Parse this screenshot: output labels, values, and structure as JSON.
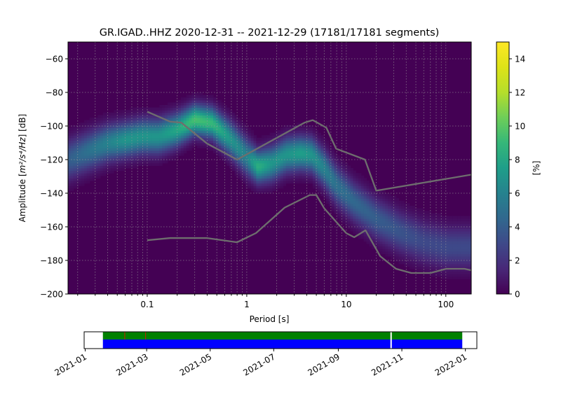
{
  "chart_data": [
    {
      "type": "heatmap",
      "title": "GR.IGAD..HHZ   2020-12-31 -- 2021-12-29  (17181/17181 segments)",
      "xlabel": "Period [s]",
      "ylabel_prefix": "Amplitude [",
      "ylabel_math": "m²/s⁴/Hz",
      "ylabel_suffix": "] [dB]",
      "x_scale": "log",
      "xlim": [
        0.016,
        180
      ],
      "ylim": [
        -200,
        -50
      ],
      "x_ticks": [
        {
          "value": 0.1,
          "label": "0.1"
        },
        {
          "value": 1,
          "label": "1"
        },
        {
          "value": 10,
          "label": "10"
        },
        {
          "value": 100,
          "label": "100"
        }
      ],
      "y_ticks": [
        {
          "value": -60,
          "label": "−60"
        },
        {
          "value": -80,
          "label": "−80"
        },
        {
          "value": -100,
          "label": "−100"
        },
        {
          "value": -120,
          "label": "−120"
        },
        {
          "value": -140,
          "label": "−140"
        },
        {
          "value": -160,
          "label": "−160"
        },
        {
          "value": -180,
          "label": "−180"
        },
        {
          "value": -200,
          "label": "−200"
        }
      ],
      "grid": true,
      "colormap": "viridis",
      "background_color": "#440154",
      "density_band": {
        "period": [
          0.016,
          0.025,
          0.04,
          0.06,
          0.09,
          0.13,
          0.2,
          0.3,
          0.45,
          0.7,
          1.0,
          1.3,
          1.8,
          2.5,
          3.5,
          4.5,
          6,
          8,
          12,
          20,
          35,
          60,
          100,
          180
        ],
        "mode_db": [
          -120,
          -115,
          -110,
          -108,
          -106,
          -106,
          -102,
          -96,
          -98,
          -108,
          -118,
          -124,
          -122,
          -117,
          -116,
          -117,
          -125,
          -135,
          -145,
          -155,
          -163,
          -169,
          -172,
          -172
        ],
        "peak_percent": [
          4,
          5,
          6,
          7,
          7,
          7,
          8,
          9.5,
          9,
          7,
          6,
          8.5,
          7,
          7,
          7.5,
          7,
          6,
          5,
          4.5,
          4,
          3.5,
          3,
          3,
          3
        ]
      },
      "noise_model_upper": {
        "name": "",
        "period": [
          0.1,
          0.17,
          0.22,
          0.4,
          0.8,
          3.8,
          4.6,
          6.3,
          7.9,
          15.4,
          20,
          354.8
        ],
        "db": [
          -91.5,
          -97.4,
          -98,
          -110.5,
          -120,
          -98,
          -96.5,
          -101,
          -113.5,
          -120,
          -138.5,
          -126
        ]
      },
      "noise_model_lower": {
        "name": "",
        "period": [
          0.1,
          0.17,
          0.4,
          0.8,
          1.24,
          2.4,
          4.3,
          5.0,
          6.0,
          10.0,
          12.0,
          15.6,
          21.9,
          31.6,
          45.0,
          70.0,
          101.0,
          154.0,
          180.0
        ],
        "db": [
          -168,
          -166.7,
          -166.7,
          -169.2,
          -163.7,
          -148.6,
          -141.1,
          -141.1,
          -149.0,
          -163.8,
          -166.2,
          -162.1,
          -177.5,
          -185.0,
          -187.5,
          -187.5,
          -185.0,
          -185.0,
          -185.9
        ]
      },
      "colorbar": {
        "label": "[%]",
        "min": 0,
        "max": 15,
        "ticks": [
          {
            "value": 0,
            "label": "0"
          },
          {
            "value": 2,
            "label": "2"
          },
          {
            "value": 4,
            "label": "4"
          },
          {
            "value": 6,
            "label": "6"
          },
          {
            "value": 8,
            "label": "8"
          },
          {
            "value": 10,
            "label": "10"
          },
          {
            "value": 12,
            "label": "12"
          },
          {
            "value": 14,
            "label": "14"
          }
        ]
      },
      "colors": {
        "noise_model": "#6e6e6e",
        "grid": "#9a9a9a"
      }
    },
    {
      "type": "timeline",
      "x_range": [
        "2020-12-31",
        "2022-01-12"
      ],
      "x_ticks": [
        {
          "value": "2021-01-01",
          "label": "2021-01"
        },
        {
          "value": "2021-03-01",
          "label": "2021-03"
        },
        {
          "value": "2021-05-01",
          "label": "2021-05"
        },
        {
          "value": "2021-07-01",
          "label": "2021-07"
        },
        {
          "value": "2021-09-01",
          "label": "2021-09"
        },
        {
          "value": "2021-11-01",
          "label": "2021-11"
        },
        {
          "value": "2022-01-01",
          "label": "2022-01"
        }
      ],
      "data_coverage": {
        "start": "2021-01-18",
        "end": "2021-12-29",
        "color": "#0000ff"
      },
      "psd_coverage": {
        "start": "2021-01-18",
        "end": "2021-12-29",
        "color": "#008000"
      },
      "gaps": [
        {
          "start": "2021-10-21",
          "end": "2021-10-22",
          "color": "#ffffff"
        }
      ],
      "overlap_marks": [
        {
          "date": "2021-02-08",
          "color": "#ff0000"
        },
        {
          "date": "2021-02-28",
          "color": "#ff0000"
        }
      ]
    }
  ]
}
